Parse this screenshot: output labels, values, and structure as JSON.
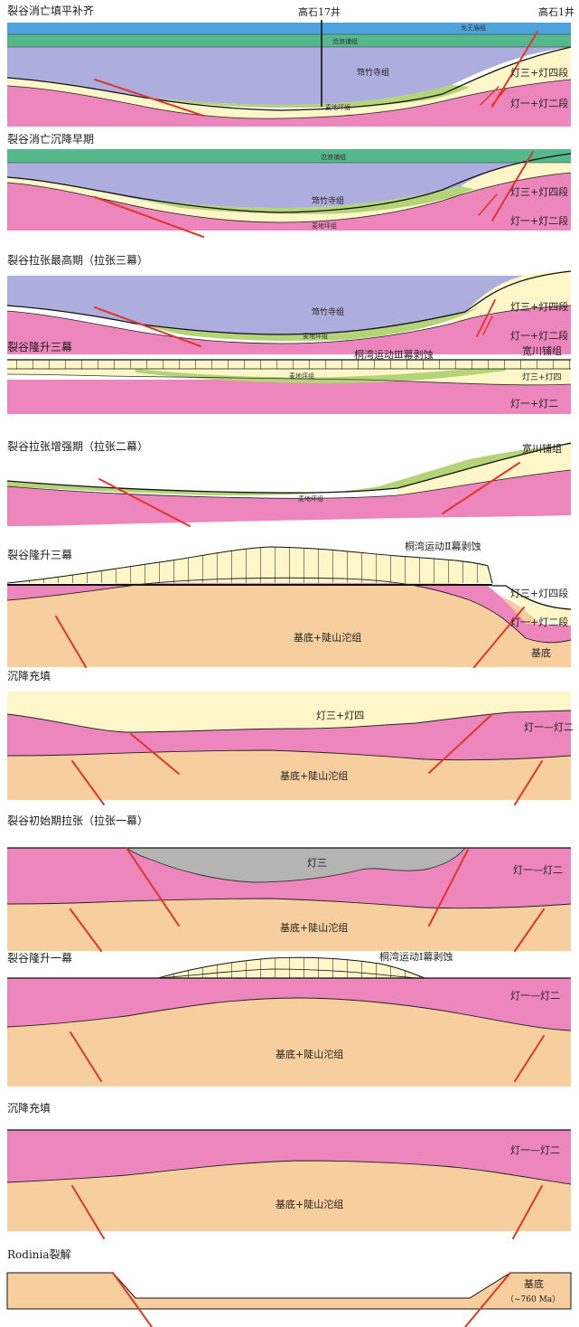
{
  "colors": {
    "basement": "#f7cf9e",
    "deng12": "#ec86bd",
    "deng34": "#fdf6c8",
    "maidiping": "#b5d477",
    "qiongzhusi": "#adadde",
    "canglangpu": "#55b88d",
    "longwangmiao": "#4fa3dd",
    "deng3_grey": "#b4b4b4",
    "fault": "#e0352a",
    "erosion_fill": "#fdf6c8"
  },
  "stages": [
    {
      "id": "s1",
      "title": "裂谷消亡填平补齐",
      "well_left": "高石17井",
      "well_right": "高石1井",
      "labels": {
        "longwangmiao": "龙王庙组",
        "canglangpu": "沧浪铺组",
        "qiongzhusi": "筇竹寺组",
        "maidiping": "麦地坪组",
        "deng34": "灯三+灯四段",
        "deng12": "灯一+灯二段"
      }
    },
    {
      "id": "s2",
      "title": "裂谷消亡沉降早期",
      "labels": {
        "canglangpu": "沧浪铺组",
        "qiongzhusi": "筇竹寺组",
        "maidiping": "麦地坪组",
        "deng34": "灯三+灯四段",
        "deng12": "灯一+灯二段"
      }
    },
    {
      "id": "s3",
      "title": "裂谷拉张最高期（拉张三幕）",
      "labels": {
        "qiongzhusi": "筇竹寺组",
        "maidiping": "麦地坪组",
        "deng34": "灯三+灯四段",
        "deng12": "灯一+灯二段"
      }
    },
    {
      "id": "s4",
      "title": "裂谷隆升三幕",
      "labels": {
        "erosion": "桐湾运动Ⅲ幕剥蚀",
        "kuanchuanpu": "宽川铺组",
        "maidiping": "麦地坪组",
        "deng34": "灯三+灯四",
        "deng12": "灯一+灯二"
      }
    },
    {
      "id": "s5",
      "title": "裂谷拉张增强期（拉张二幕）",
      "labels": {
        "kuanchuanpu": "宽川铺组",
        "maidiping": "麦地坪组"
      }
    },
    {
      "id": "s6",
      "title": "裂谷隆升三幕",
      "labels": {
        "erosion": "桐湾运动Ⅱ幕剥蚀",
        "deng34": "灯三+灯四段",
        "deng12": "灯一+灯二段",
        "basement": "基底+陡山沱组",
        "basement2": "基底"
      }
    },
    {
      "id": "s7",
      "title": "沉降充填",
      "labels": {
        "deng34": "灯三+灯四",
        "deng12": "灯一—灯二",
        "basement": "基底+陡山沱组"
      }
    },
    {
      "id": "s8",
      "title": "裂谷初始期拉张（拉张一幕）",
      "labels": {
        "deng3": "灯三",
        "deng12": "灯一—灯二",
        "basement": "基底+陡山沱组"
      }
    },
    {
      "id": "s9",
      "title": "裂谷隆升一幕",
      "labels": {
        "erosion": "桐湾运动Ⅰ幕剥蚀",
        "deng12": "灯一—灯二",
        "basement": "基底+陡山沱组"
      }
    },
    {
      "id": "s10",
      "title": "沉降充填",
      "labels": {
        "deng12": "灯一—灯二",
        "basement": "基底+陡山沱组"
      }
    },
    {
      "id": "s11",
      "title": "Rodinia裂解",
      "labels": {
        "basement": "基底",
        "age": "（~760 Ma）"
      }
    }
  ]
}
